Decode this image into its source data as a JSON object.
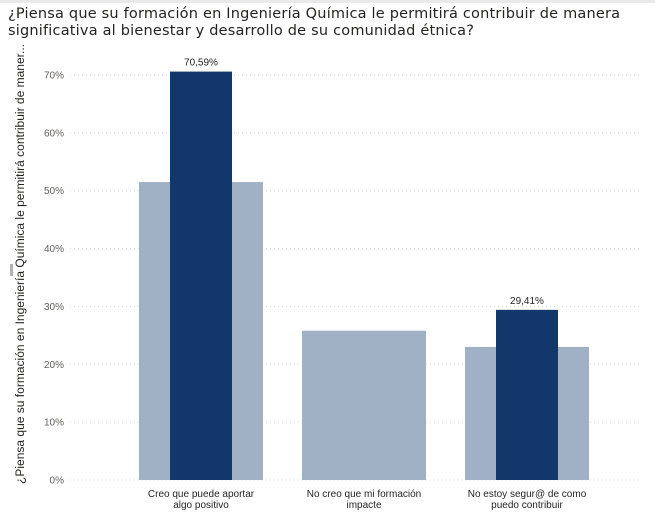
{
  "chart_data": {
    "type": "bar",
    "title": "¿Piensa que su formación en Ingeniería Química le permitirá contribuir de manera significativa al bienestar y desarrollo de su comunidad étnica?",
    "ylabel": "¿Piensa que su formación en Ingeniería Química le permitirá contribuir de maner...",
    "xlabel": "",
    "ylim": [
      0,
      70
    ],
    "yticks": [
      0,
      10,
      20,
      30,
      40,
      50,
      60,
      70
    ],
    "ytick_labels": [
      "0%",
      "10%",
      "20%",
      "30%",
      "40%",
      "50%",
      "60%",
      "70%"
    ],
    "grid": true,
    "categories": [
      [
        "Creo que puede aportar",
        "algo positivo"
      ],
      [
        "No creo que mi formación",
        "impacte"
      ],
      [
        "No estoy segur@ de como",
        "puedo contribuir"
      ]
    ],
    "series": [
      {
        "values": [
          51.5,
          25.8,
          23.0
        ],
        "color": "#a0b1c6"
      },
      {
        "values": [
          70.59,
          null,
          29.41
        ],
        "labels": [
          "70,59%",
          "",
          "29,41%"
        ],
        "color": "#12386b"
      }
    ]
  }
}
